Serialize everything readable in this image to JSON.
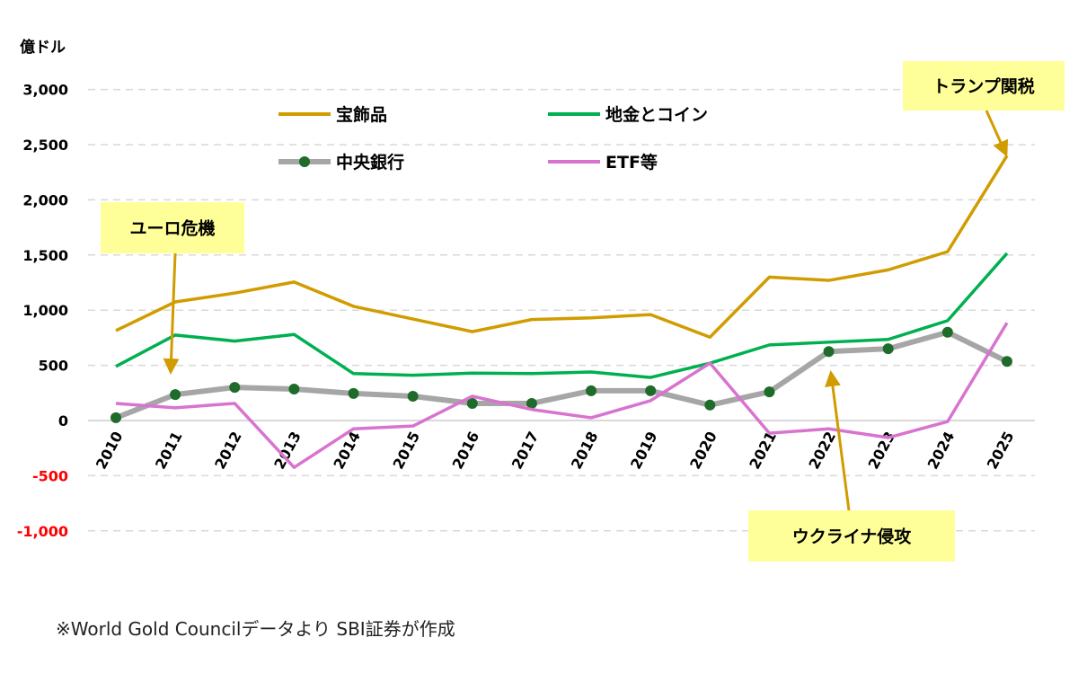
{
  "chart_data": {
    "type": "line",
    "ylabel": "億ドル",
    "ylim": [
      -1000,
      3000
    ],
    "yticks": [
      3000,
      2500,
      2000,
      1500,
      1000,
      500,
      0,
      -500,
      -1000
    ],
    "ytick_labels": [
      "3,000",
      "2,500",
      "2,000",
      "1,500",
      "1,000",
      "500",
      "0",
      "-500",
      "-1,000"
    ],
    "negative_tick_color": "#ff0000",
    "grid": "horizontal dashed",
    "categories": [
      "2010",
      "2011",
      "2012",
      "2013",
      "2014",
      "2015",
      "2016",
      "2017",
      "2018",
      "2019",
      "2020",
      "2021",
      "2022",
      "2023",
      "2024",
      "2025"
    ],
    "series": [
      {
        "name": "宝飾品",
        "color": "#d19c00",
        "markers": false,
        "values": [
          815,
          1075,
          1155,
          1255,
          1035,
          920,
          805,
          915,
          930,
          960,
          755,
          1300,
          1270,
          1365,
          1530,
          2400
        ]
      },
      {
        "name": "地金とコイン",
        "color": "#00b050",
        "markers": false,
        "values": [
          490,
          775,
          720,
          780,
          425,
          410,
          430,
          425,
          440,
          390,
          520,
          685,
          710,
          735,
          905,
          1515
        ]
      },
      {
        "name": "中央銀行",
        "color": "#a6a6a6",
        "marker_color": "#1e6b2a",
        "markers": true,
        "values": [
          25,
          235,
          300,
          285,
          245,
          220,
          155,
          155,
          270,
          270,
          140,
          260,
          625,
          650,
          800,
          535
        ]
      },
      {
        "name": "ETF等",
        "color": "#d874cf",
        "markers": false,
        "values": [
          155,
          115,
          155,
          -425,
          -75,
          -50,
          220,
          100,
          25,
          180,
          520,
          -115,
          -75,
          -155,
          -10,
          885
        ]
      }
    ],
    "legend": "top-center",
    "annotations": [
      {
        "text": "ユーロ危機",
        "target_category": "2011",
        "arrow_color": "#d19c00",
        "box_color": "#ffff99"
      },
      {
        "text": "トランプ関税",
        "target_category": "2025",
        "arrow_color": "#d19c00",
        "box_color": "#ffff99"
      },
      {
        "text": "ウクライナ侵攻",
        "target_category": "2022",
        "arrow_color": "#d19c00",
        "box_color": "#ffff99"
      }
    ]
  },
  "footer": "※World Gold Councilデータより SBI証券が作成"
}
